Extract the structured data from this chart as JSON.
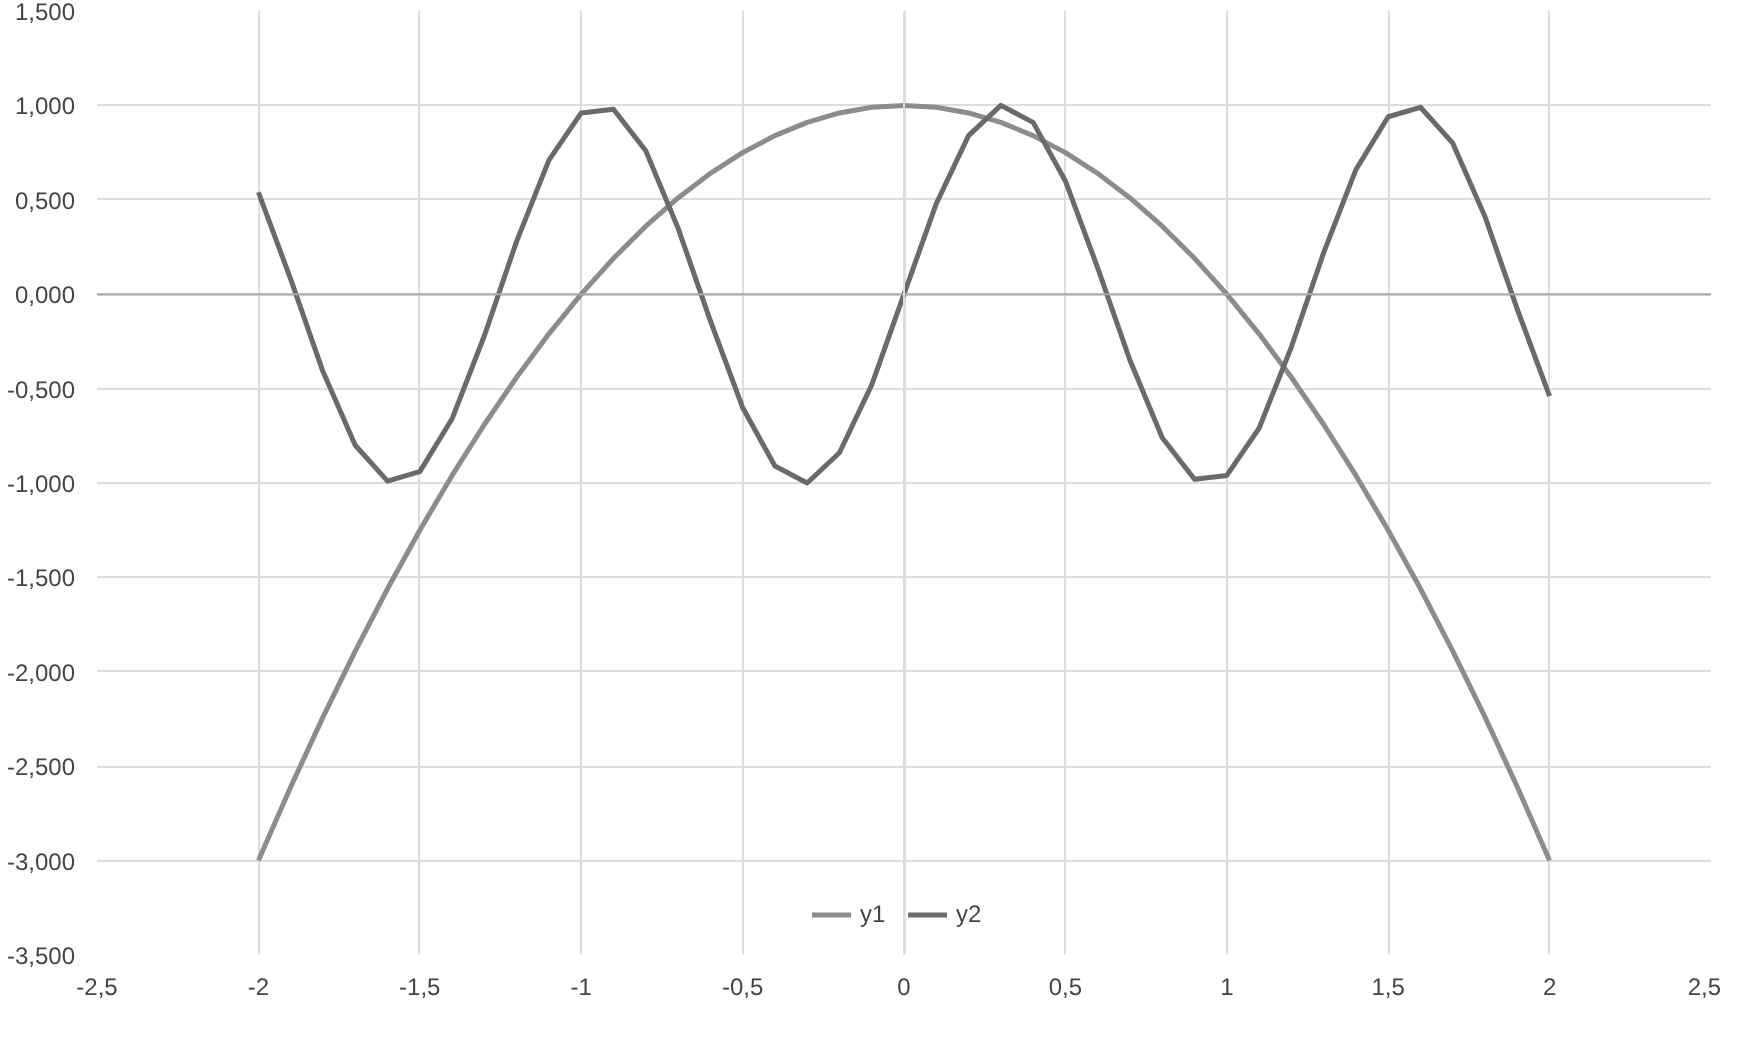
{
  "chart_data": {
    "type": "line",
    "x": [
      -2,
      -1.9,
      -1.8,
      -1.7,
      -1.6,
      -1.5,
      -1.4,
      -1.3,
      -1.2,
      -1.1,
      -1,
      -0.9,
      -0.8,
      -0.7,
      -0.6,
      -0.5,
      -0.4,
      -0.3,
      -0.2,
      -0.1,
      0,
      0.1,
      0.2,
      0.3,
      0.4,
      0.5,
      0.6,
      0.7,
      0.8,
      0.9,
      1,
      1.1,
      1.2,
      1.3,
      1.4,
      1.5,
      1.6,
      1.7,
      1.8,
      1.9,
      2
    ],
    "series": [
      {
        "name": "y1",
        "color": "#8c8c8c",
        "values": [
          -3,
          -2.61,
          -2.24,
          -1.89,
          -1.56,
          -1.25,
          -0.96,
          -0.69,
          -0.44,
          -0.21,
          0,
          0.19,
          0.36,
          0.51,
          0.64,
          0.75,
          0.84,
          0.91,
          0.96,
          0.99,
          1,
          0.99,
          0.96,
          0.91,
          0.84,
          0.75,
          0.64,
          0.51,
          0.36,
          0.19,
          0,
          -0.21,
          -0.44,
          -0.69,
          -0.96,
          -1.25,
          -1.56,
          -1.89,
          -2.24,
          -2.61,
          -3
        ]
      },
      {
        "name": "y2",
        "color": "#6a6a6a",
        "values": [
          0.54,
          0.08,
          -0.41,
          -0.8,
          -0.99,
          -0.94,
          -0.66,
          -0.22,
          0.28,
          0.71,
          0.96,
          0.98,
          0.76,
          0.35,
          -0.14,
          -0.6,
          -0.91,
          -1,
          -0.84,
          -0.48,
          0,
          0.48,
          0.84,
          1,
          0.91,
          0.6,
          0.14,
          -0.35,
          -0.76,
          -0.98,
          -0.96,
          -0.71,
          -0.28,
          0.22,
          0.66,
          0.94,
          0.99,
          0.8,
          0.41,
          -0.08,
          -0.54
        ]
      }
    ],
    "xlim": [
      -2.5,
      2.5
    ],
    "xticks": [
      {
        "value": -2.5,
        "label": "-2,5"
      },
      -2,
      {
        "value": -1.5,
        "label": "-1,5"
      },
      -1,
      {
        "value": -0.5,
        "label": "-0,5"
      },
      0,
      {
        "value": 0.5,
        "label": "0,5"
      },
      1,
      {
        "value": 1.5,
        "label": "1,5"
      },
      2,
      {
        "value": 2.5,
        "label": "2,5"
      }
    ],
    "ylim": [
      -3.5,
      1.5
    ],
    "yticks": [
      {
        "value": -3.5,
        "label": "-3,500"
      },
      {
        "value": -3,
        "label": "-3,000"
      },
      {
        "value": -2.5,
        "label": "-2,500"
      },
      {
        "value": -2,
        "label": "-2,000"
      },
      {
        "value": -1.5,
        "label": "-1,500"
      },
      {
        "value": -1,
        "label": "-1,000"
      },
      {
        "value": -0.5,
        "label": "-0,500"
      },
      {
        "value": 0,
        "label": "0,000"
      },
      {
        "value": 0.5,
        "label": "0,500"
      },
      {
        "value": 1,
        "label": "1,000"
      },
      {
        "value": 1.5,
        "label": "1,500"
      }
    ],
    "grid": true,
    "legend": "bottom",
    "marker": "none",
    "line_style": "solid"
  }
}
